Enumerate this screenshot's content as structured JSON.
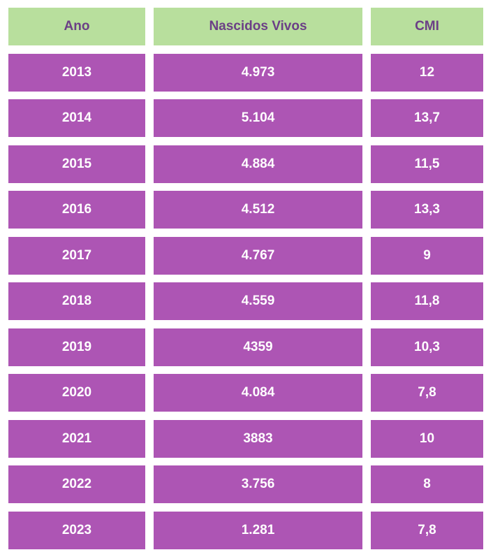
{
  "table": {
    "columns": [
      "Ano",
      "Nascidos Vivos",
      "CMI"
    ],
    "rows": [
      [
        "2013",
        "4.973",
        "12"
      ],
      [
        "2014",
        "5.104",
        "13,7"
      ],
      [
        "2015",
        "4.884",
        "11,5"
      ],
      [
        "2016",
        "4.512",
        "13,3"
      ],
      [
        "2017",
        "4.767",
        "9"
      ],
      [
        "2018",
        "4.559",
        "11,8"
      ],
      [
        "2019",
        "4359",
        "10,3"
      ],
      [
        "2020",
        "4.084",
        "7,8"
      ],
      [
        "2021",
        "3883",
        "10"
      ],
      [
        "2022",
        "3.756",
        "8"
      ],
      [
        "2023",
        "1.281",
        "7,8"
      ]
    ]
  },
  "colors": {
    "header_bg": "#b8df9d",
    "header_text": "#6b3f86",
    "cell_bg": "#ad55b4",
    "cell_text": "#ffffff"
  }
}
